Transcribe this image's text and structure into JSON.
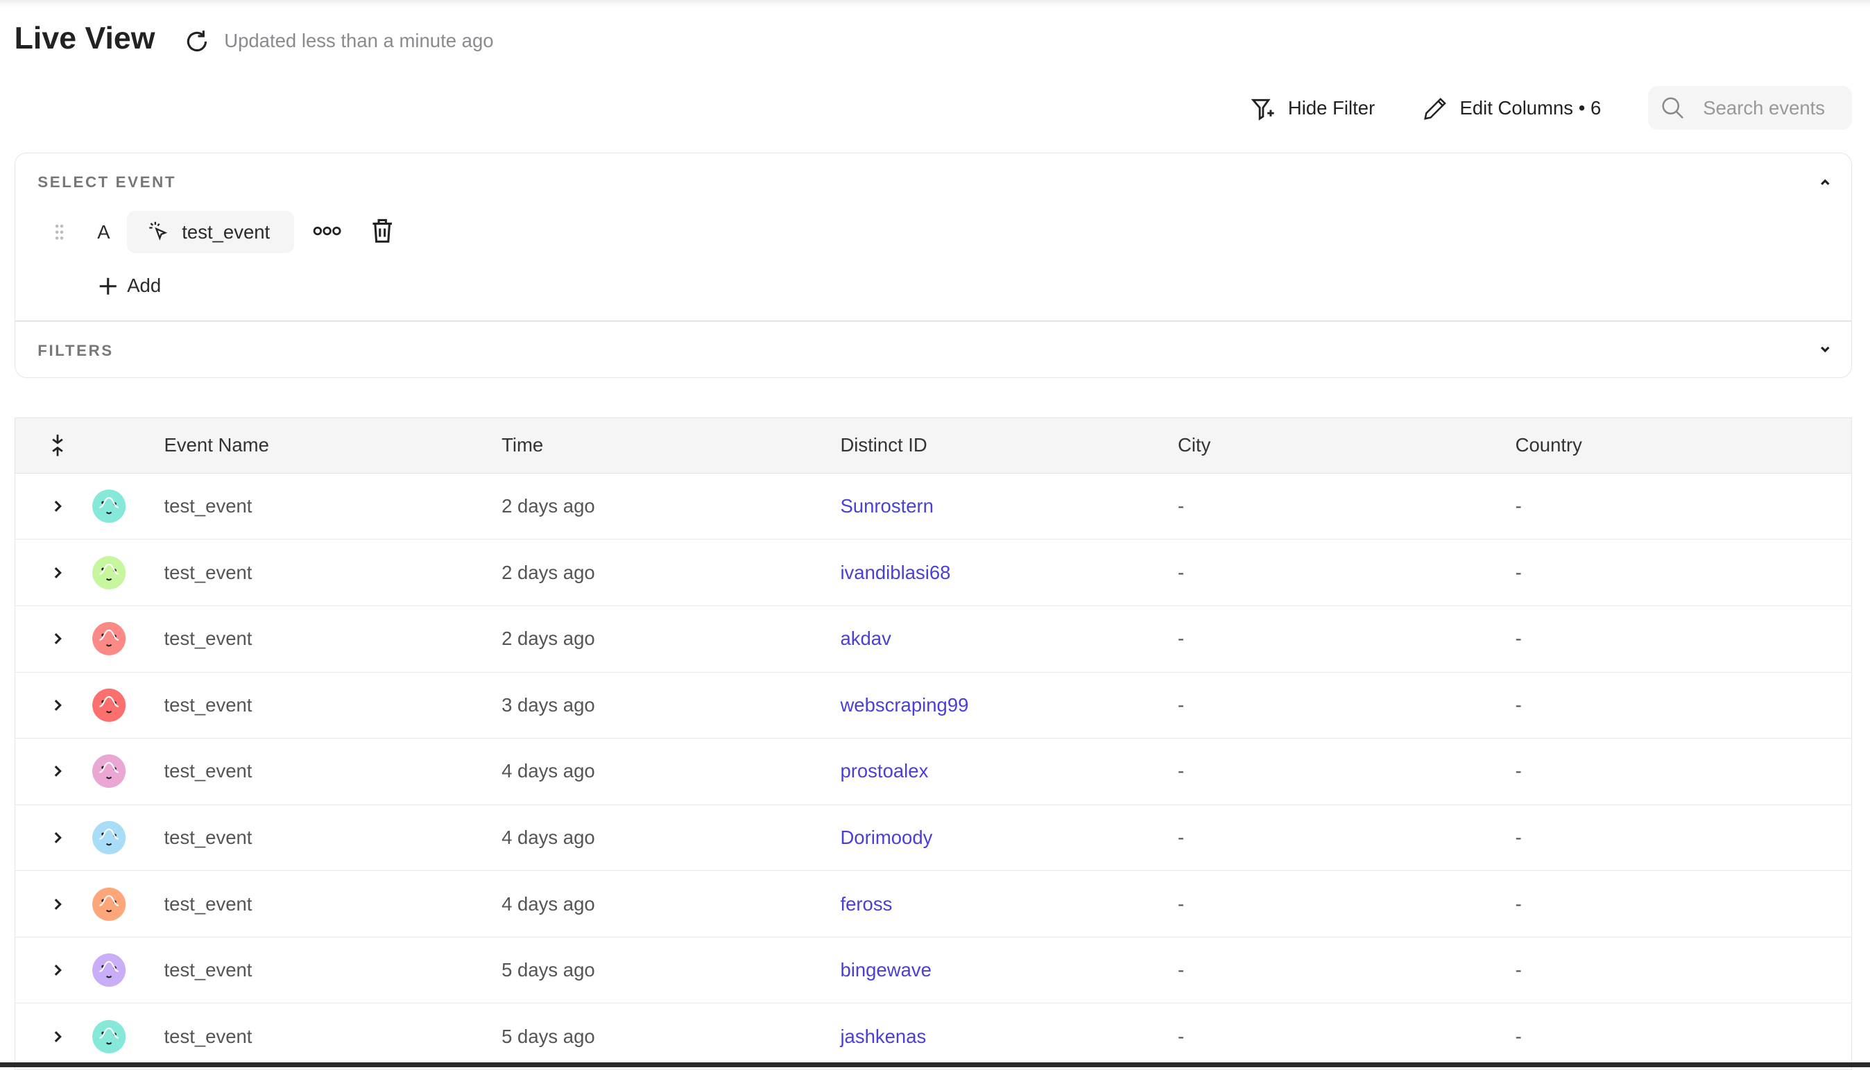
{
  "header": {
    "title": "Live View",
    "updated": "Updated less than a minute ago"
  },
  "toolbar": {
    "hide_filter": "Hide Filter",
    "edit_columns": "Edit Columns • 6",
    "search_placeholder": "Search events"
  },
  "select_event": {
    "label": "SELECT EVENT",
    "letter": "A",
    "event": "test_event",
    "add": "Add"
  },
  "filters": {
    "label": "FILTERS"
  },
  "table": {
    "columns": [
      "Event Name",
      "Time",
      "Distinct ID",
      "City",
      "Country"
    ],
    "rows": [
      {
        "event": "test_event",
        "time": "2 days ago",
        "distinct_id": "Sunrostern",
        "city": "-",
        "country": "-",
        "avatar_color": "#86e8d8"
      },
      {
        "event": "test_event",
        "time": "2 days ago",
        "distinct_id": "ivandiblasi68",
        "city": "-",
        "country": "-",
        "avatar_color": "#c6f79e"
      },
      {
        "event": "test_event",
        "time": "2 days ago",
        "distinct_id": "akdav",
        "city": "-",
        "country": "-",
        "avatar_color": "#fb8a86"
      },
      {
        "event": "test_event",
        "time": "3 days ago",
        "distinct_id": "webscraping99",
        "city": "-",
        "country": "-",
        "avatar_color": "#fb6f6f"
      },
      {
        "event": "test_event",
        "time": "4 days ago",
        "distinct_id": "prostoalex",
        "city": "-",
        "country": "-",
        "avatar_color": "#eaa7d3"
      },
      {
        "event": "test_event",
        "time": "4 days ago",
        "distinct_id": "Dorimoody",
        "city": "-",
        "country": "-",
        "avatar_color": "#a8dcf7"
      },
      {
        "event": "test_event",
        "time": "4 days ago",
        "distinct_id": "feross",
        "city": "-",
        "country": "-",
        "avatar_color": "#fda679"
      },
      {
        "event": "test_event",
        "time": "5 days ago",
        "distinct_id": "bingewave",
        "city": "-",
        "country": "-",
        "avatar_color": "#c9adf7"
      },
      {
        "event": "test_event",
        "time": "5 days ago",
        "distinct_id": "jashkenas",
        "city": "-",
        "country": "-",
        "avatar_color": "#86e8d8"
      }
    ]
  },
  "colors": {
    "link": "#4a40d8",
    "header_bg": "#f5f5f5"
  }
}
